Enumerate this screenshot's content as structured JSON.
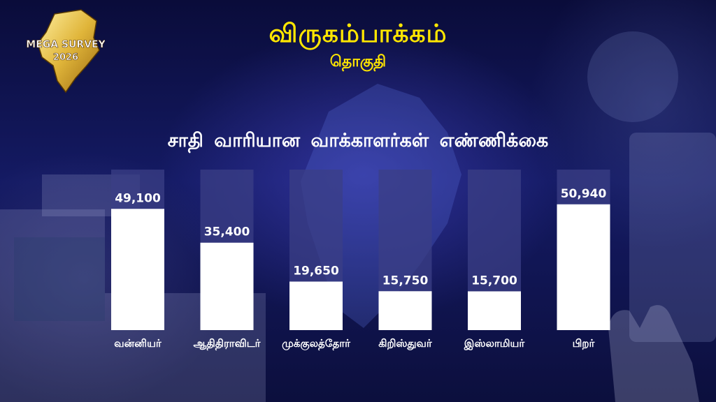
{
  "header": {
    "logo_text_top": "MEGA SURVEY",
    "logo_text_year": "2026",
    "title": "விருகம்பாக்கம்",
    "subtitle": "தொகுதி"
  },
  "colors": {
    "title": "#ffe600",
    "bar_fill": "#ffffff",
    "bar_track": "#3b3f86",
    "logo_gold": "#e0b53a"
  },
  "chart_data": {
    "type": "bar",
    "title": "சாதி வாரியான வாக்காளர்கள் எண்ணிக்கை",
    "categories": [
      "வன்னியர்",
      "ஆதிதிராவிடர்",
      "முக்குலத்தோர்",
      "கிறிஸ்துவர்",
      "இஸ்லாமியர்",
      "பிறர்"
    ],
    "values": [
      49100,
      35400,
      19650,
      15750,
      15700,
      50940
    ],
    "value_labels": [
      "49,100",
      "35,400",
      "19,650",
      "15,750",
      "15,700",
      "50,940"
    ],
    "ylim": [
      0,
      65000
    ],
    "grid": false,
    "legend": "none"
  }
}
